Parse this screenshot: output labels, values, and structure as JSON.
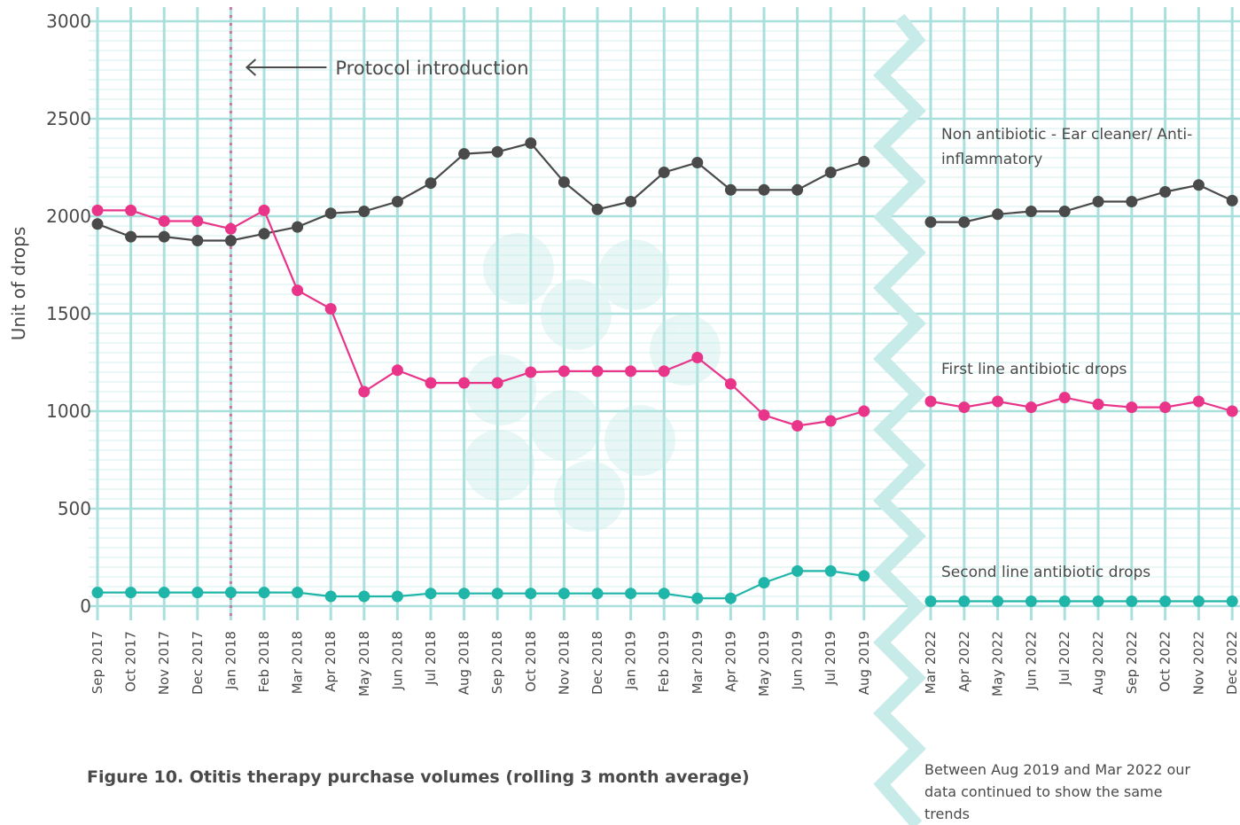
{
  "chart_data": [
    {
      "type": "line",
      "title": "Figure 10. Otitis therapy purchase volumes (rolling 3 month average)",
      "ylabel": "Unit of drops",
      "ylim": [
        0,
        3000
      ],
      "yticks": [
        0,
        500,
        1000,
        1500,
        2000,
        2500,
        3000
      ],
      "grid": true,
      "annotation": {
        "text": "Protocol introduction",
        "x": "Jan 2018"
      },
      "categories": [
        "Sep 2017",
        "Oct 2017",
        "Nov 2017",
        "Dec 2017",
        "Jan 2018",
        "Feb 2018",
        "Mar 2018",
        "Apr 2018",
        "May 2018",
        "Jun 2018",
        "Jul 2018",
        "Aug 2018",
        "Sep 2018",
        "Oct 2018",
        "Nov 2018",
        "Dec 2018",
        "Jan 2019",
        "Feb 2019",
        "Mar 2019",
        "Apr 2019",
        "May 2019",
        "Jun 2019",
        "Jul 2019",
        "Aug 2019"
      ],
      "series": [
        {
          "color": "#4a4a4a",
          "values": [
            1960,
            1895,
            1895,
            1875,
            1875,
            1910,
            1945,
            2015,
            2025,
            2075,
            2170,
            2320,
            2330,
            2375,
            2175,
            2035,
            2075,
            2225,
            2275,
            2135,
            2135,
            2135,
            2225,
            2280
          ]
        },
        {
          "color": "#e8358a",
          "values": [
            2030,
            2030,
            1975,
            1975,
            1935,
            2030,
            1620,
            1525,
            1100,
            1210,
            1145,
            1145,
            1145,
            1200,
            1205,
            1205,
            1205,
            1205,
            1275,
            1140,
            980,
            925,
            950,
            1000
          ]
        },
        {
          "color": "#1fb5a8",
          "values": [
            70,
            70,
            70,
            70,
            70,
            70,
            70,
            50,
            50,
            50,
            65,
            65,
            65,
            65,
            65,
            65,
            65,
            65,
            40,
            40,
            120,
            180,
            180,
            155
          ]
        }
      ]
    },
    {
      "type": "line",
      "note": "Between Aug 2019 and Mar 2022 our data continued to show the same trends",
      "categories": [
        "Mar 2022",
        "Apr 2022",
        "May 2022",
        "Jun 2022",
        "Jul 2022",
        "Aug 2022",
        "Sep 2022",
        "Oct 2022",
        "Nov 2022",
        "Dec 2022"
      ],
      "series": [
        {
          "name": "Non antibiotic - Ear cleaner/ Anti-inflammatory",
          "color": "#4a4a4a",
          "values": [
            1970,
            1970,
            2010,
            2025,
            2025,
            2075,
            2075,
            2125,
            2160,
            2080
          ]
        },
        {
          "name": "First line antibiotic drops",
          "color": "#e8358a",
          "values": [
            1050,
            1020,
            1050,
            1020,
            1070,
            1035,
            1020,
            1020,
            1050,
            1000
          ]
        },
        {
          "name": "Second line antibiotic drops",
          "color": "#1fb5a8",
          "values": [
            25,
            25,
            25,
            25,
            25,
            25,
            25,
            25,
            25,
            25
          ]
        }
      ]
    }
  ]
}
